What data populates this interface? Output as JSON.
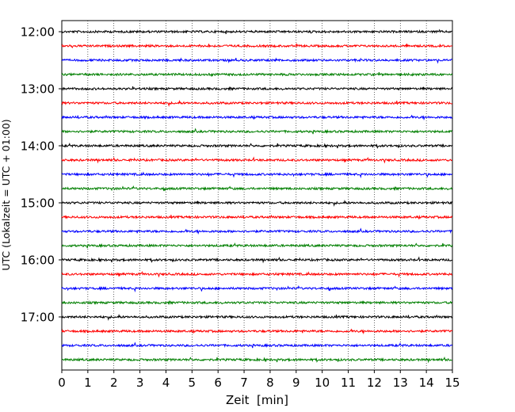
{
  "chart_data": {
    "type": "line",
    "title": "",
    "xlabel": "Zeit  [min]",
    "ylabel": "UTC (Lokalzeit = UTC + 01:00)",
    "xlim": [
      0,
      15
    ],
    "x_ticks": [
      0,
      1,
      2,
      3,
      4,
      5,
      6,
      7,
      8,
      9,
      10,
      11,
      12,
      13,
      14,
      15
    ],
    "x_tick_labels": [
      "0",
      "1",
      "2",
      "3",
      "4",
      "5",
      "6",
      "7",
      "8",
      "9",
      "10",
      "11",
      "12",
      "13",
      "14",
      "15"
    ],
    "y_ticks": [
      "12:00",
      "13:00",
      "14:00",
      "15:00",
      "16:00",
      "17:00"
    ],
    "row_interval_minutes": 15,
    "row_start": "12:00",
    "row_count": 24,
    "row_colors": [
      "#000000",
      "#ff0000",
      "#0000ff",
      "#007f00"
    ],
    "x_grid": true,
    "y_grid": false
  }
}
